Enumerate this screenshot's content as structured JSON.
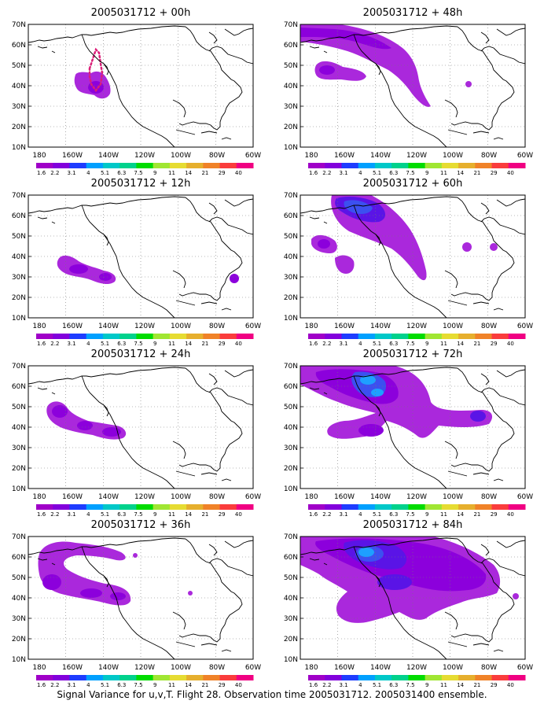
{
  "caption": "Signal Variance for u,v,T. Flight 28. Observation time 2005031712. 2005031400 ensemble.",
  "lat_labels": [
    "70N",
    "60N",
    "50N",
    "40N",
    "30N",
    "20N",
    "10N"
  ],
  "lon_labels": [
    "180",
    "160W",
    "140W",
    "120W",
    "100W",
    "80W",
    "60W"
  ],
  "colorbar": {
    "labels": [
      "1.6",
      "2.2",
      "3.1",
      "4",
      "5.1",
      "6.3",
      "7.5",
      "9",
      "11",
      "14",
      "21",
      "29",
      "40"
    ],
    "colors": [
      "#a000c8",
      "#8200dc",
      "#1e3cff",
      "#00a0ff",
      "#00c8c8",
      "#00d28c",
      "#00dc00",
      "#a0e632",
      "#e6dc32",
      "#e6af2d",
      "#f08228",
      "#fa3c3c",
      "#f00082"
    ]
  },
  "panels": [
    {
      "title": "2005031712 + 00h",
      "forecast_hour": 0
    },
    {
      "title": "2005031712 + 48h",
      "forecast_hour": 48
    },
    {
      "title": "2005031712 + 12h",
      "forecast_hour": 12
    },
    {
      "title": "2005031712 + 60h",
      "forecast_hour": 60
    },
    {
      "title": "2005031712 + 24h",
      "forecast_hour": 24
    },
    {
      "title": "2005031712 + 72h",
      "forecast_hour": 72
    },
    {
      "title": "2005031712 + 36h",
      "forecast_hour": 36
    },
    {
      "title": "2005031712 + 84h",
      "forecast_hour": 84
    }
  ],
  "shade_colors": {
    "light": "#aa28dc",
    "mid": "#8c00dc",
    "strong": "#5a14e6",
    "blue": "#3c50f0",
    "cyan": "#1ea0ff",
    "track": "#dc1e78"
  }
}
